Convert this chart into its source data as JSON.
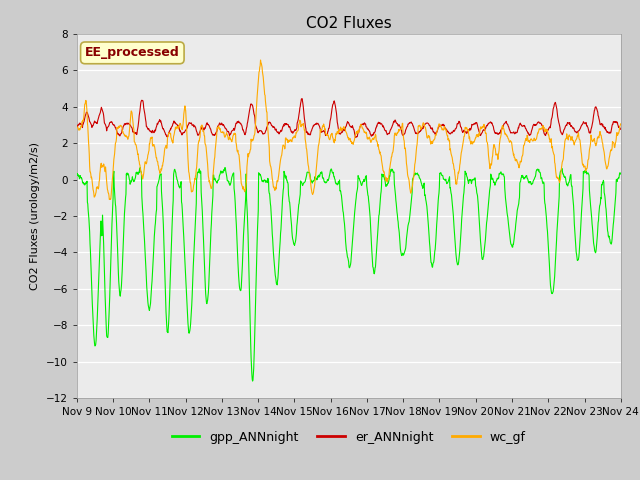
{
  "title": "CO2 Fluxes",
  "ylabel": "CO2 Fluxes (urology/m2/s)",
  "ylim": [
    -12,
    8
  ],
  "yticks": [
    -12,
    -10,
    -8,
    -6,
    -4,
    -2,
    0,
    2,
    4,
    6,
    8
  ],
  "n_days": 15,
  "xtick_labels": [
    "Nov 9",
    "Nov 10",
    "Nov 11",
    "Nov 12",
    "Nov 13",
    "Nov 14",
    "Nov 15",
    "Nov 16",
    "Nov 17",
    "Nov 18",
    "Nov 19",
    "Nov 20",
    "Nov 21",
    "Nov 22",
    "Nov 23",
    "Nov 24"
  ],
  "colors": {
    "gpp": "#00ee00",
    "er": "#cc0000",
    "wc": "#ffaa00",
    "fig_bg": "#cccccc",
    "plot_bg": "#ebebeb",
    "legend_box": "#ffffcc",
    "legend_border": "#bbaa44"
  },
  "legend_label": "EE_processed",
  "series_labels": [
    "gpp_ANNnight",
    "er_ANNnight",
    "wc_gf"
  ],
  "linewidth": 0.8,
  "title_fontsize": 11,
  "axis_fontsize": 8,
  "tick_fontsize": 7.5,
  "legend_fontsize": 9
}
